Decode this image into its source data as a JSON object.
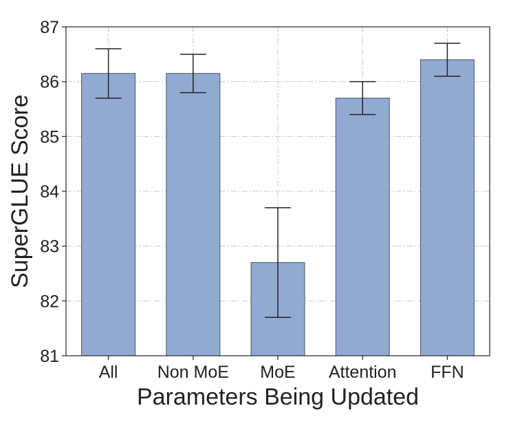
{
  "chart_data": {
    "type": "bar",
    "categories": [
      "All",
      "Non MoE",
      "MoE",
      "Attention",
      "FFN"
    ],
    "values": [
      86.15,
      86.15,
      82.7,
      85.7,
      86.4
    ],
    "errors": [
      {
        "low": 85.7,
        "high": 86.6
      },
      {
        "low": 85.8,
        "high": 86.5
      },
      {
        "low": 81.7,
        "high": 83.7
      },
      {
        "low": 85.4,
        "high": 86.0
      },
      {
        "low": 86.1,
        "high": 86.7
      }
    ],
    "xlabel": "Parameters Being Updated",
    "ylabel": "SuperGLUE Score",
    "ylim": [
      81,
      87
    ],
    "yticks": [
      81,
      82,
      83,
      84,
      85,
      86,
      87
    ],
    "grid": true,
    "bar_color": "#92aad2",
    "bar_edge_color": "#4a5566",
    "grid_color": "#c8c8c8"
  }
}
